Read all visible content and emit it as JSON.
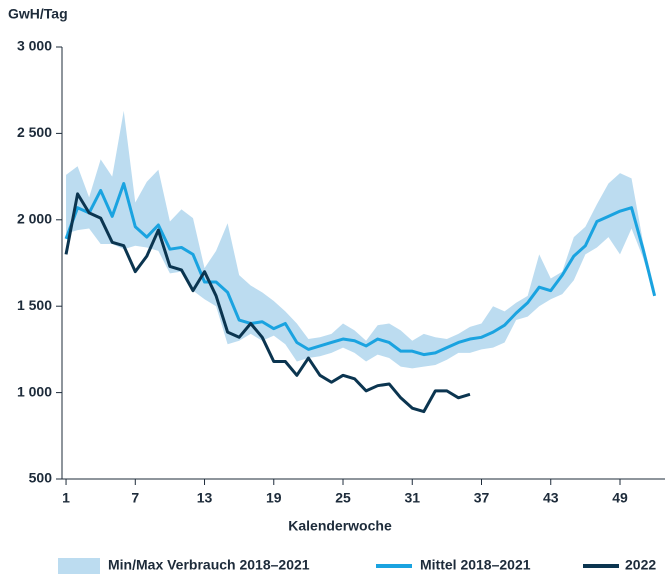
{
  "chart_data": {
    "type": "line",
    "y_label": "GwH/Tag",
    "x_label": "Kalenderwoche",
    "x": [
      1,
      2,
      3,
      4,
      5,
      6,
      7,
      8,
      9,
      10,
      11,
      12,
      13,
      14,
      15,
      16,
      17,
      18,
      19,
      20,
      21,
      22,
      23,
      24,
      25,
      26,
      27,
      28,
      29,
      30,
      31,
      32,
      33,
      34,
      35,
      36,
      37,
      38,
      39,
      40,
      41,
      42,
      43,
      44,
      45,
      46,
      47,
      48,
      49,
      50,
      51,
      52
    ],
    "xlim": [
      0.65,
      52.9
    ],
    "xticks": [
      1,
      7,
      13,
      19,
      25,
      31,
      37,
      43,
      49
    ],
    "ylim": [
      500,
      3000
    ],
    "yticks": [
      {
        "value": 500,
        "label": "500"
      },
      {
        "value": 1000,
        "label": "1 000"
      },
      {
        "value": 1500,
        "label": "1 500"
      },
      {
        "value": 2000,
        "label": "2 000"
      },
      {
        "value": 2500,
        "label": "2 500"
      },
      {
        "value": 3000,
        "label": "3 000"
      }
    ],
    "series": [
      {
        "name": "Min/Max Verbrauch 2018–2021",
        "color": "#bcdcf0",
        "type": "band",
        "max": [
          2260,
          2310,
          2130,
          2350,
          2250,
          2630,
          2100,
          2220,
          2290,
          1990,
          2060,
          2010,
          1720,
          1820,
          1980,
          1680,
          1620,
          1580,
          1530,
          1470,
          1400,
          1310,
          1320,
          1340,
          1400,
          1360,
          1300,
          1390,
          1400,
          1360,
          1300,
          1340,
          1320,
          1310,
          1340,
          1380,
          1400,
          1500,
          1470,
          1520,
          1560,
          1800,
          1660,
          1700,
          1900,
          1960,
          2090,
          2210,
          2270,
          2240,
          1870,
          1600
        ],
        "min": [
          1920,
          1940,
          1950,
          1860,
          1860,
          1830,
          1850,
          1840,
          1820,
          1690,
          1700,
          1590,
          1540,
          1500,
          1280,
          1300,
          1340,
          1300,
          1330,
          1280,
          1180,
          1200,
          1210,
          1230,
          1260,
          1230,
          1180,
          1220,
          1200,
          1150,
          1140,
          1150,
          1160,
          1190,
          1230,
          1230,
          1250,
          1260,
          1290,
          1420,
          1440,
          1500,
          1540,
          1570,
          1650,
          1800,
          1840,
          1900,
          1800,
          1950,
          1780,
          1560
        ]
      },
      {
        "name": "Mittel 2018–2021",
        "color": "#1aa3e0",
        "values": [
          1890,
          2070,
          2040,
          2170,
          2020,
          2210,
          1960,
          1900,
          1970,
          1830,
          1840,
          1800,
          1640,
          1640,
          1580,
          1420,
          1400,
          1410,
          1370,
          1400,
          1290,
          1250,
          1270,
          1290,
          1310,
          1300,
          1270,
          1310,
          1290,
          1240,
          1240,
          1220,
          1230,
          1260,
          1290,
          1310,
          1320,
          1350,
          1390,
          1460,
          1520,
          1610,
          1590,
          1680,
          1790,
          1850,
          1990,
          2020,
          2050,
          2070,
          1830,
          1560
        ]
      },
      {
        "name": "2022",
        "color": "#0b3550",
        "values": [
          1800,
          2150,
          2040,
          2010,
          1870,
          1850,
          1700,
          1790,
          1940,
          1730,
          1710,
          1590,
          1700,
          1560,
          1350,
          1320,
          1400,
          1320,
          1180,
          1180,
          1100,
          1200,
          1100,
          1060,
          1100,
          1080,
          1010,
          1040,
          1050,
          970,
          910,
          890,
          1010,
          1010,
          970,
          990,
          null,
          null,
          null,
          null,
          null,
          null,
          null,
          null,
          null,
          null,
          null,
          null,
          null,
          null,
          null,
          null
        ]
      }
    ]
  }
}
